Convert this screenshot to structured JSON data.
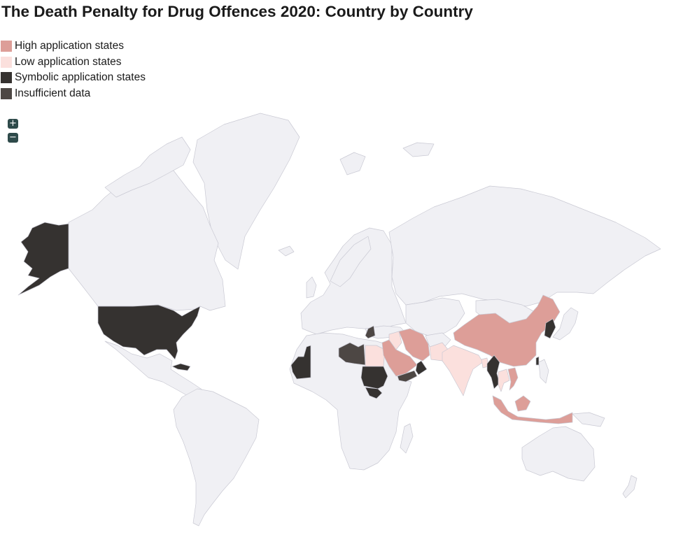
{
  "title": "The Death Penalty for Drug Offences 2020: Country by Country",
  "legend": [
    {
      "key": "high",
      "label": "High application states",
      "color": "#dd9e98"
    },
    {
      "key": "low",
      "label": "Low application states",
      "color": "#fbe0dd"
    },
    {
      "key": "symbolic",
      "label": "Symbolic application states",
      "color": "#353230"
    },
    {
      "key": "insufficient",
      "label": "Insufficient data",
      "color": "#4d4744"
    }
  ],
  "zoom": {
    "in_label": "+",
    "out_label": "−"
  },
  "base_color": "#f0f0f4",
  "country_categories": {
    "Iran": "high",
    "Saudi Arabia": "high",
    "China": "high",
    "Vietnam": "high",
    "Singapore": "high",
    "Indonesia": "high",
    "Malaysia": "high",
    "India": "low",
    "Pakistan": "low",
    "Egypt": "low",
    "Thailand": "low",
    "Laos": "low",
    "Kuwait": "low",
    "Jordan": "low",
    "Bangladesh": "low",
    "Sri Lanka": "low",
    "Iraq": "low",
    "United States": "symbolic",
    "Cuba": "symbolic",
    "Mauritania": "symbolic",
    "Sudan": "symbolic",
    "South Sudan": "symbolic",
    "North Korea": "symbolic",
    "Myanmar": "symbolic",
    "Oman": "symbolic",
    "United Arab Emirates": "symbolic",
    "Qatar": "symbolic",
    "Bahrain": "symbolic",
    "Taiwan": "symbolic",
    "Brunei": "symbolic",
    "South Korea": "symbolic",
    "Libya": "insufficient",
    "Syria": "insufficient",
    "Yemen": "insufficient"
  }
}
